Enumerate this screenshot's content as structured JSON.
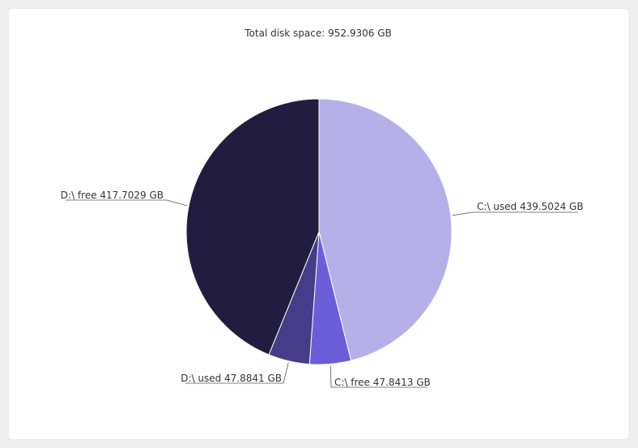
{
  "chart_data": {
    "type": "pie",
    "title": "Total disk space: 952.9306 GB",
    "slices": [
      {
        "label": "C:\\ used 439.5024 GB",
        "name": "C:\\ used",
        "value": 439.5024,
        "color": "#b7b0e8"
      },
      {
        "label": "C:\\ free 47.8413 GB",
        "name": "C:\\ free",
        "value": 47.8413,
        "color": "#6c5ed8"
      },
      {
        "label": "D:\\ used 47.8841 GB",
        "name": "D:\\ used",
        "value": 47.8841,
        "color": "#463c89"
      },
      {
        "label": "D:\\ free 417.7029 GB",
        "name": "D:\\ free",
        "value": 417.7029,
        "color": "#221c40"
      }
    ]
  }
}
